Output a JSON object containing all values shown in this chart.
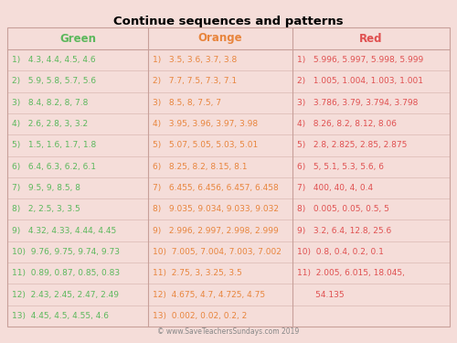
{
  "title": "Continue sequences and patterns",
  "background_color": "#f5ddd9",
  "col_header_color_green": "#5cb85c",
  "col_header_color_orange": "#e8853d",
  "col_header_color_red": "#e05050",
  "text_color_green": "#5cb85c",
  "text_color_orange": "#e8853d",
  "text_color_red": "#e05050",
  "border_color": "#c8a09a",
  "footer": "© www.SaveTeachersSundays.com 2019",
  "green_items": [
    "1)   4.3, 4.4, 4.5, 4.6",
    "2)   5.9, 5.8, 5.7, 5.6",
    "3)   8.4, 8.2, 8, 7.8",
    "4)   2.6, 2.8, 3, 3.2",
    "5)   1.5, 1.6, 1.7, 1.8",
    "6)   6.4, 6.3, 6.2, 6.1",
    "7)   9.5, 9, 8.5, 8",
    "8)   2, 2.5, 3, 3.5",
    "9)   4.32, 4.33, 4.44, 4.45",
    "10)  9.76, 9.75, 9.74, 9.73",
    "11)  0.89, 0.87, 0.85, 0.83",
    "12)  2.43, 2.45, 2.47, 2.49",
    "13)  4.45, 4.5, 4.55, 4.6"
  ],
  "orange_items": [
    "1)   3.5, 3.6, 3.7, 3.8",
    "2)   7.7, 7.5, 7.3, 7.1",
    "3)   8.5, 8, 7.5, 7",
    "4)   3.95, 3.96, 3.97, 3.98",
    "5)   5.07, 5.05, 5.03, 5.01",
    "6)   8.25, 8.2, 8.15, 8.1",
    "7)   6.455, 6.456, 6.457, 6.458",
    "8)   9.035, 9.034, 9.033, 9.032",
    "9)   2.996, 2.997, 2.998, 2.999",
    "10)  7.005, 7.004, 7.003, 7.002",
    "11)  2.75, 3, 3.25, 3.5",
    "12)  4.675, 4.7, 4.725, 4.75",
    "13)  0.002, 0.02, 0.2, 2"
  ],
  "red_items": [
    "1)   5.996, 5.997, 5.998, 5.999",
    "2)   1.005, 1.004, 1.003, 1.001",
    "3)   3.786, 3.79, 3.794, 3.798",
    "4)   8.26, 8.2, 8.12, 8.06",
    "5)   2.8, 2.825, 2.85, 2.875",
    "6)   5, 5.1, 5.3, 5.6, 6",
    "7)   400, 40, 4, 0.4",
    "8)   0.005, 0.05, 0.5, 5",
    "9)   3.2, 6.4, 12.8, 25.6",
    "10)  0.8, 0.4, 0.2, 0.1",
    "11a) 2.005, 6.015, 18.045,",
    "11b) 54.135",
    ""
  ]
}
